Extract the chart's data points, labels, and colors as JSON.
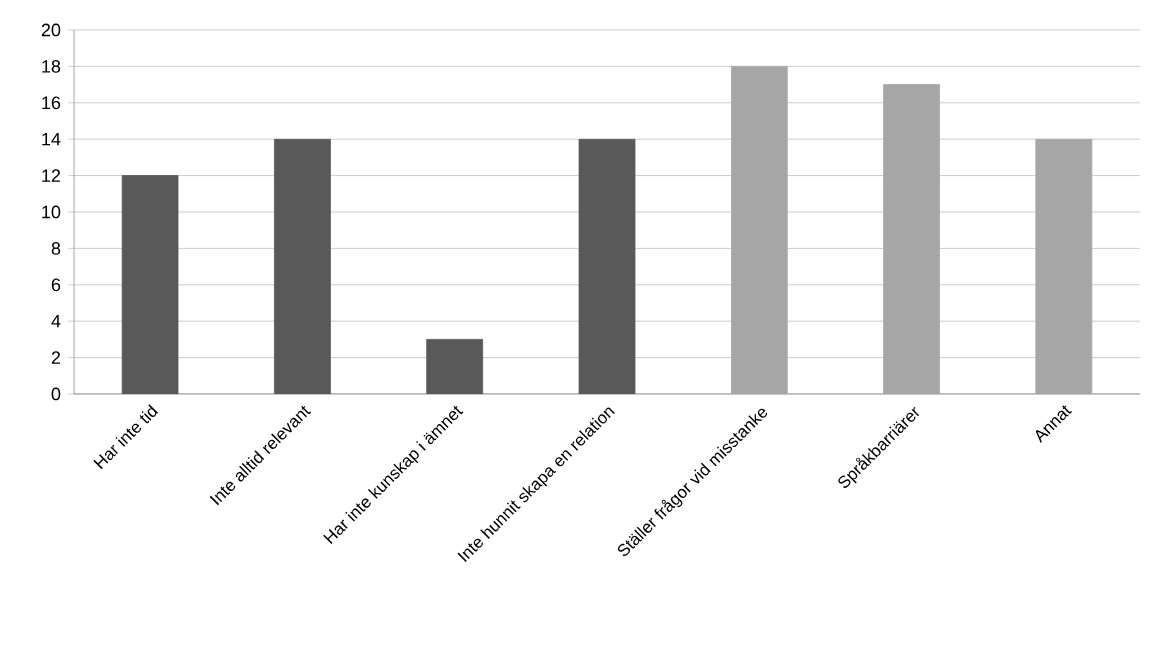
{
  "chart_data": {
    "type": "bar",
    "categories": [
      "Har inte tid",
      "Inte alltid relevant",
      "Har inte kunskap i ämnet",
      "Inte hunnit skapa en relation",
      "Ställer frågor vid misstanke",
      "Språkbarriärer",
      "Annat"
    ],
    "values": [
      12,
      14,
      3,
      14,
      18,
      17,
      14
    ],
    "colors": [
      "#595959",
      "#595959",
      "#595959",
      "#595959",
      "#a6a6a6",
      "#a6a6a6",
      "#a6a6a6"
    ],
    "ylim": [
      0,
      20
    ],
    "yticks": [
      0,
      2,
      4,
      6,
      8,
      10,
      12,
      14,
      16,
      18,
      20
    ],
    "grid": "y"
  }
}
